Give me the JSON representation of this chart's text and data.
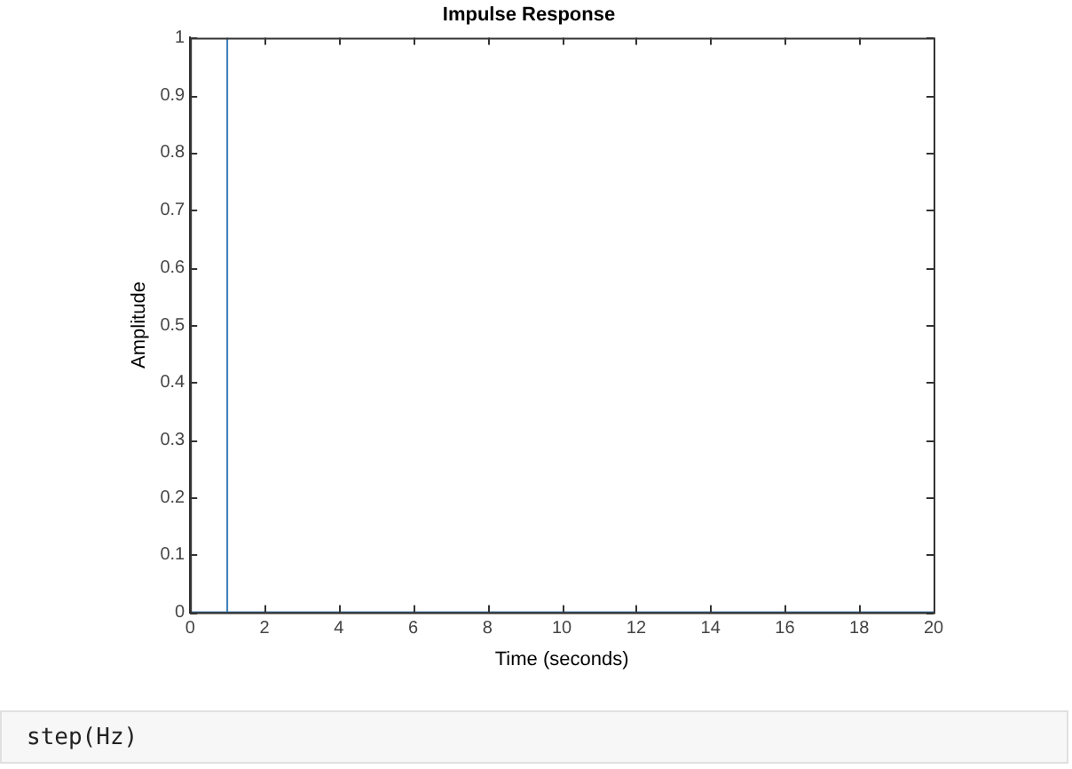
{
  "chart_data": {
    "type": "line",
    "title": "Impulse Response",
    "xlabel": "Time (seconds)",
    "ylabel": "Amplitude",
    "series": [
      {
        "color": "#3d7fb8",
        "x": [
          0,
          1,
          1,
          1,
          20
        ],
        "values": [
          0,
          0,
          1,
          0,
          0
        ]
      }
    ],
    "xlim": [
      0,
      20
    ],
    "xticks": [
      0,
      2,
      4,
      6,
      8,
      10,
      12,
      14,
      16,
      18,
      20
    ],
    "ylim": [
      0,
      1
    ],
    "yticks": [
      0,
      0.1,
      0.2,
      0.3,
      0.4,
      0.5,
      0.6,
      0.7,
      0.8,
      0.9,
      1
    ],
    "grid": false,
    "legend": false,
    "marker": "none",
    "line_style": "solid",
    "annotations": [
      "step(Hz)"
    ]
  }
}
